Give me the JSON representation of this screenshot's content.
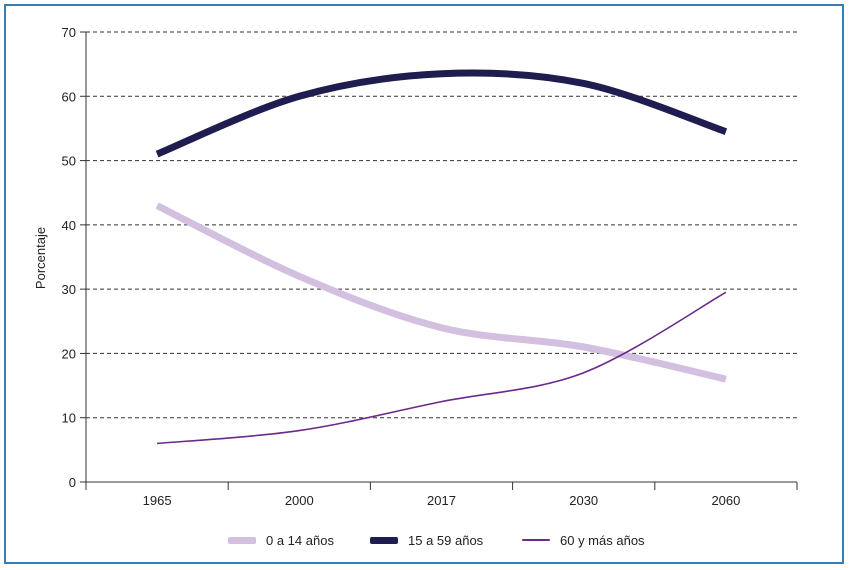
{
  "chart_data": {
    "type": "line",
    "title": "",
    "xlabel": "",
    "ylabel": "Porcentaje",
    "categories": [
      "1965",
      "2000",
      "2017",
      "2030",
      "2060"
    ],
    "ylim": [
      0,
      70
    ],
    "yticks": [
      0,
      10,
      20,
      30,
      40,
      50,
      60,
      70
    ],
    "grid": "horizontal dashed",
    "legend_position": "bottom",
    "series": [
      {
        "name": "0 a 14 años",
        "values": [
          43,
          32,
          24,
          21,
          16
        ],
        "color": "#d3bfe0",
        "style": "thick"
      },
      {
        "name": "15 a 59 años",
        "values": [
          51,
          60,
          63.5,
          62,
          54.5
        ],
        "color": "#1f1c50",
        "style": "thick"
      },
      {
        "name": "60 y más años",
        "values": [
          6,
          8,
          12.5,
          17,
          29.5
        ],
        "color": "#6a2a8a",
        "style": "thin"
      }
    ]
  },
  "colors": {
    "frame_border": "#3a7fb3",
    "axis": "#333333",
    "grid": "#333333"
  }
}
